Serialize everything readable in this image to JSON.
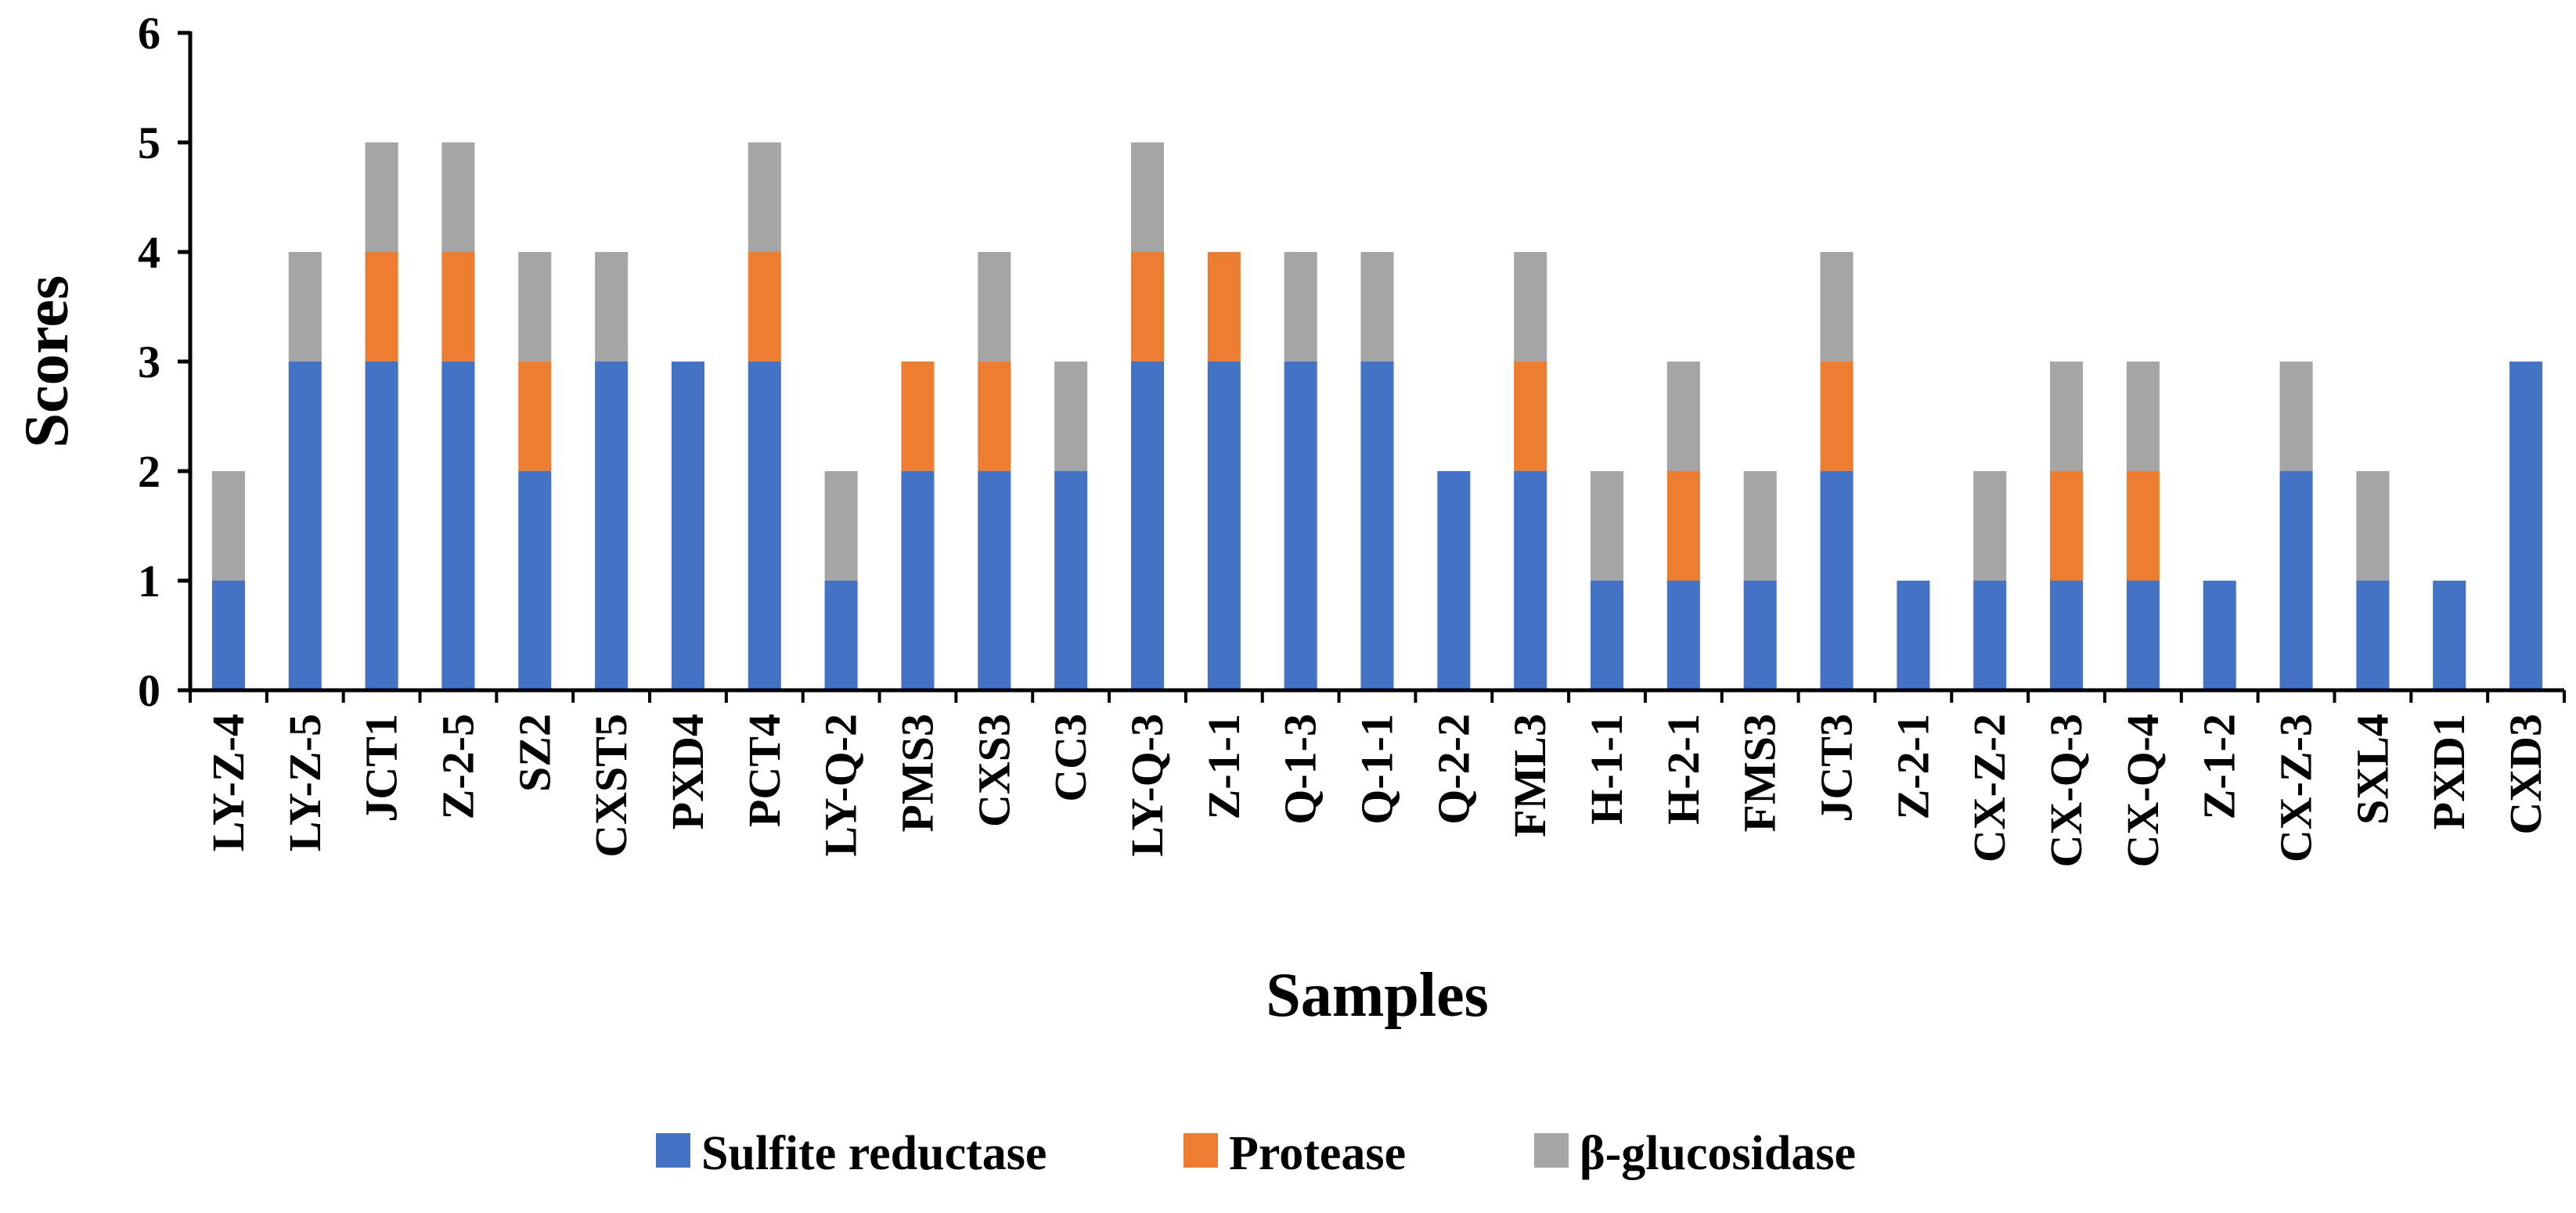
{
  "chart_data": {
    "type": "bar",
    "stacked": true,
    "title": "",
    "xlabel": "Samples",
    "ylabel": "Scores",
    "ylim": [
      0,
      6
    ],
    "yticks": [
      0,
      1,
      2,
      3,
      4,
      5,
      6
    ],
    "grid": false,
    "legend_position": "bottom",
    "categories": [
      "LY-Z-4",
      "LY-Z-5",
      "JCT1",
      "Z-2-5",
      "SZ2",
      "CXST5",
      "PXD4",
      "PCT4",
      "LY-Q-2",
      "PMS3",
      "CXS3",
      "CC3",
      "LY-Q-3",
      "Z-1-1",
      "Q-1-3",
      "Q-1-1",
      "Q-2-2",
      "FML3",
      "H-1-1",
      "H-2-1",
      "FMS3",
      "JCT3",
      "Z-2-1",
      "CX-Z-2",
      "CX-Q-3",
      "CX-Q-4",
      "Z-1-2",
      "CX-Z-3",
      "SXL4",
      "PXD1",
      "CXD3"
    ],
    "series": [
      {
        "name": "Sulfite reductase",
        "color": "#4472C4",
        "values": [
          1,
          3,
          3,
          3,
          2,
          3,
          3,
          3,
          1,
          2,
          2,
          2,
          3,
          3,
          3,
          3,
          2,
          2,
          1,
          1,
          1,
          2,
          1,
          1,
          1,
          1,
          1,
          2,
          1,
          1,
          3
        ]
      },
      {
        "name": "Protease",
        "color": "#ED7D31",
        "values": [
          0,
          0,
          1,
          1,
          1,
          0,
          0,
          1,
          0,
          1,
          1,
          0,
          1,
          1,
          0,
          0,
          0,
          1,
          0,
          1,
          0,
          1,
          0,
          0,
          1,
          1,
          0,
          0,
          0,
          0,
          0
        ]
      },
      {
        "name": "β-glucosidase",
        "color": "#A5A5A5",
        "values": [
          1,
          1,
          1,
          1,
          1,
          1,
          0,
          1,
          1,
          0,
          1,
          1,
          1,
          0,
          1,
          1,
          0,
          1,
          1,
          1,
          1,
          1,
          0,
          1,
          1,
          1,
          0,
          1,
          1,
          0,
          0
        ]
      }
    ]
  }
}
